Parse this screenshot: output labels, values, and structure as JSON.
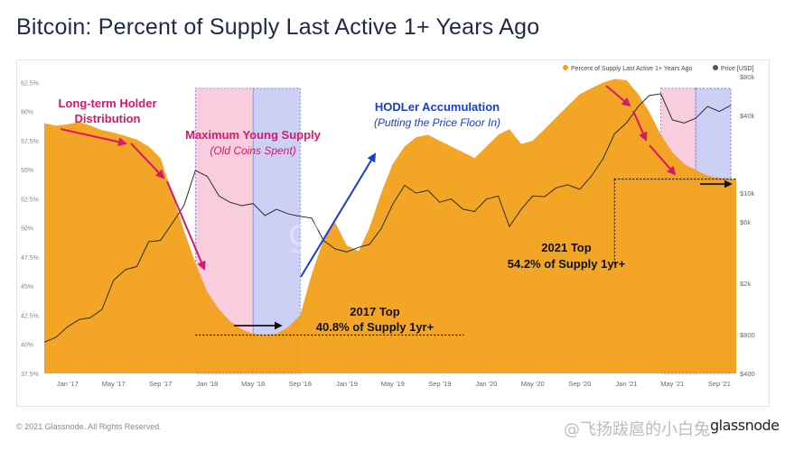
{
  "title": "Bitcoin: Percent of Supply Last Active 1+ Years Ago",
  "copyright": "© 2021 Glassnode. All Rights Reserved.",
  "brand": "glassnode",
  "watermark": "@飞扬跋扈的小白兔",
  "colors": {
    "supply_fill": "#f2a01a",
    "price_line": "#2b2b2b",
    "pink_band": "#f7c6d9",
    "blue_band": "#c3c8f2",
    "magenta_arrow": "#d6196a",
    "blue_arrow": "#1a3ec9",
    "title_text": "#1f2a44"
  },
  "annotations": {
    "lth_title_line1": "Long-term Holder",
    "lth_title_line2": "Distribution",
    "young_title": "Maximum Young Supply",
    "young_sub": "(Old Coins Spent)",
    "hodl_title": "HODLer Accumulation",
    "hodl_sub": "(Putting the Price Floor In)",
    "top2017_title": "2017 Top",
    "top2017_sub": "40.8% of Supply 1yr+",
    "top2021_title": "2021 Top",
    "top2021_sub": "54.2% of Supply 1yr+"
  },
  "chart_data": {
    "type": "area",
    "x_tick_labels": [
      "Jan '17",
      "May '17",
      "Sep '17",
      "Jan '18",
      "May '18",
      "Sep '18",
      "Jan '19",
      "May '19",
      "Sep '19",
      "Jan '20",
      "May '20",
      "Sep '20",
      "Jan '21",
      "May '21",
      "Sep '21"
    ],
    "y_left_ticks": [
      "37.5%",
      "40%",
      "42.5%",
      "45%",
      "47.5%",
      "50%",
      "52.5%",
      "55%",
      "57.5%",
      "60%",
      "62.5%"
    ],
    "y_right_ticks": [
      "$400",
      "$800",
      "$2k",
      "$6k",
      "$10k",
      "$40k",
      "$80k"
    ],
    "ylim_left": [
      37.5,
      63
    ],
    "y_scale_right": "log",
    "legend": [
      "Percent of Supply Last Active 1+ Years Ago",
      "Price [USD]"
    ],
    "legend_placement": "top-right",
    "grid": false,
    "series": [
      {
        "name": "Percent of Supply Last Active 1+ Years Ago",
        "axis": "left",
        "unit": "%",
        "x": [
          "2016-11",
          "2016-12",
          "2017-01",
          "2017-02",
          "2017-03",
          "2017-04",
          "2017-05",
          "2017-06",
          "2017-07",
          "2017-08",
          "2017-09",
          "2017-10",
          "2017-11",
          "2017-12",
          "2018-01",
          "2018-02",
          "2018-03",
          "2018-04",
          "2018-05",
          "2018-06",
          "2018-07",
          "2018-08",
          "2018-09",
          "2018-10",
          "2018-11",
          "2018-12",
          "2019-01",
          "2019-02",
          "2019-03",
          "2019-04",
          "2019-05",
          "2019-06",
          "2019-07",
          "2019-08",
          "2019-09",
          "2019-10",
          "2019-11",
          "2019-12",
          "2020-01",
          "2020-02",
          "2020-03",
          "2020-04",
          "2020-05",
          "2020-06",
          "2020-07",
          "2020-08",
          "2020-09",
          "2020-10",
          "2020-11",
          "2020-12",
          "2021-01",
          "2021-02",
          "2021-03",
          "2021-04",
          "2021-05",
          "2021-06",
          "2021-07",
          "2021-08",
          "2021-09",
          "2021-10"
        ],
        "values": [
          59.0,
          58.8,
          58.9,
          59.1,
          58.8,
          58.4,
          58.2,
          57.9,
          57.6,
          57.0,
          56.0,
          53.0,
          49.8,
          47.0,
          44.5,
          43.0,
          42.0,
          41.3,
          40.9,
          40.8,
          40.9,
          41.5,
          42.5,
          46.0,
          49.0,
          50.5,
          48.5,
          48.0,
          50.0,
          53.0,
          55.5,
          57.0,
          57.8,
          58.0,
          57.5,
          57.0,
          56.5,
          56.0,
          57.0,
          58.0,
          58.5,
          57.2,
          57.5,
          58.5,
          59.5,
          60.5,
          61.5,
          62.0,
          62.5,
          62.8,
          62.7,
          61.5,
          60.0,
          58.0,
          56.5,
          55.5,
          55.0,
          54.5,
          54.3,
          54.2
        ]
      },
      {
        "name": "Price [USD]",
        "axis": "right",
        "unit": "USD",
        "x": [
          "2016-11",
          "2016-12",
          "2017-01",
          "2017-02",
          "2017-03",
          "2017-04",
          "2017-05",
          "2017-06",
          "2017-07",
          "2017-08",
          "2017-09",
          "2017-10",
          "2017-11",
          "2017-12",
          "2018-01",
          "2018-02",
          "2018-03",
          "2018-04",
          "2018-05",
          "2018-06",
          "2018-07",
          "2018-08",
          "2018-09",
          "2018-10",
          "2018-11",
          "2018-12",
          "2019-01",
          "2019-02",
          "2019-03",
          "2019-04",
          "2019-05",
          "2019-06",
          "2019-07",
          "2019-08",
          "2019-09",
          "2019-10",
          "2019-11",
          "2019-12",
          "2020-01",
          "2020-02",
          "2020-03",
          "2020-04",
          "2020-05",
          "2020-06",
          "2020-07",
          "2020-08",
          "2020-09",
          "2020-10",
          "2020-11",
          "2020-12",
          "2021-01",
          "2021-02",
          "2021-03",
          "2021-04",
          "2021-05",
          "2021-06",
          "2021-07",
          "2021-08",
          "2021-09",
          "2021-10"
        ],
        "values": [
          700,
          760,
          920,
          1050,
          1080,
          1250,
          2100,
          2550,
          2700,
          4200,
          4300,
          5800,
          8000,
          15000,
          13500,
          9500,
          8500,
          8000,
          8300,
          6700,
          7500,
          6900,
          6600,
          6400,
          4300,
          3700,
          3500,
          3800,
          4000,
          5300,
          8200,
          11500,
          10000,
          10500,
          8500,
          9000,
          7500,
          7200,
          9000,
          9500,
          5500,
          7500,
          9500,
          9400,
          11000,
          11600,
          10700,
          13500,
          18500,
          28900,
          35000,
          47000,
          57000,
          59000,
          37000,
          35000,
          38000,
          47000,
          43000,
          48000
        ]
      }
    ],
    "markers": [
      {
        "label": "2017 Top",
        "value_pct": 40.8
      },
      {
        "label": "2021 Top",
        "value_pct": 54.2
      }
    ]
  }
}
